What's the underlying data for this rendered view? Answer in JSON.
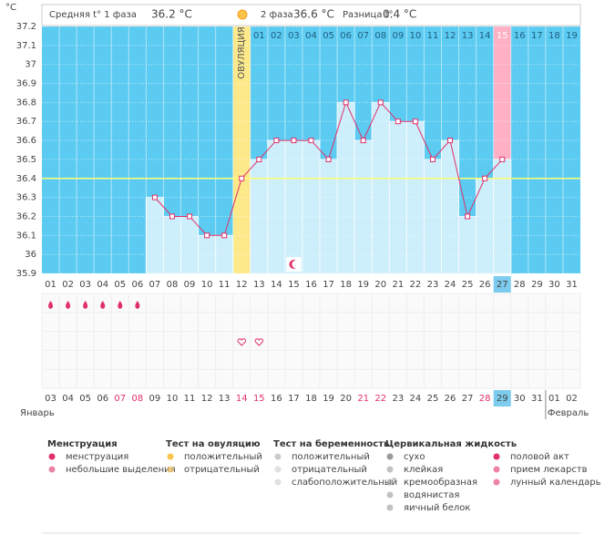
{
  "chart_data": {
    "type": "line",
    "unit": "°C",
    "header": {
      "phase1_label": "Средняя t° 1 фаза",
      "phase1_value": "36.2 °C",
      "phase2_label": "2 фаза",
      "phase2_value": "36.6 °C",
      "diff_label": "Разница t°",
      "diff_value": "0.4 °C"
    },
    "ovulation_label": "ОВУЛЯЦИЯ",
    "ovulation_index": 11,
    "highlight_index": 26,
    "categories": [
      "01",
      "02",
      "03",
      "04",
      "05",
      "06",
      "07",
      "08",
      "09",
      "10",
      "11",
      "12",
      "13",
      "14",
      "15",
      "16",
      "17",
      "18",
      "19",
      "20",
      "21",
      "22",
      "23",
      "24",
      "25",
      "26",
      "27",
      "28",
      "29",
      "30",
      "31"
    ],
    "phase2_days": [
      null,
      null,
      null,
      null,
      null,
      null,
      null,
      null,
      null,
      null,
      null,
      null,
      "01",
      "02",
      "03",
      "04",
      "05",
      "06",
      "07",
      "08",
      "09",
      "10",
      "11",
      "12",
      "13",
      "14",
      "15",
      "16",
      "17",
      "18",
      "19"
    ],
    "dates": [
      "03",
      "04",
      "05",
      "06",
      "07",
      "08",
      "09",
      "10",
      "11",
      "12",
      "13",
      "14",
      "15",
      "16",
      "17",
      "18",
      "19",
      "20",
      "21",
      "22",
      "23",
      "24",
      "25",
      "26",
      "27",
      "28",
      "29",
      "30",
      "31",
      "01",
      "02"
    ],
    "weekend_indices": [
      4,
      5,
      11,
      12,
      18,
      19,
      25
    ],
    "weekend_color": "#e0306a",
    "month_start": "Январь",
    "month_end": "Февраль",
    "series": [
      {
        "name": "t°",
        "color": "#e0306a",
        "values": [
          null,
          null,
          null,
          null,
          null,
          null,
          36.3,
          36.2,
          36.2,
          36.1,
          36.1,
          36.4,
          36.5,
          36.6,
          36.6,
          36.6,
          36.5,
          36.8,
          36.6,
          36.8,
          36.7,
          36.7,
          36.5,
          36.6,
          36.2,
          36.4,
          36.5,
          null,
          null,
          null,
          null
        ]
      }
    ],
    "baseline": 36.4,
    "ylim": [
      35.9,
      37.2
    ],
    "yticks": [
      35.9,
      36,
      36.1,
      36.2,
      36.3,
      36.4,
      36.5,
      36.6,
      36.7,
      36.8,
      36.9,
      37,
      37.1,
      37.2
    ],
    "grid": true,
    "symbols": {
      "menstruation": [
        0,
        1,
        2,
        3,
        4,
        5
      ],
      "intercourse": [
        11,
        12
      ],
      "moon": [
        14
      ]
    },
    "legend": [
      {
        "title": "Менструация",
        "items": [
          "менструация",
          "небольшие выделения"
        ]
      },
      {
        "title": "Тест на овуляцию",
        "items": [
          "положительный",
          "отрицательный"
        ]
      },
      {
        "title": "Тест на беременность",
        "items": [
          "положительный",
          "отрицательный",
          "слабоположительный"
        ]
      },
      {
        "title": "Цервикальная жидкость",
        "items": [
          "сухо",
          "клейкая",
          "кремообразная",
          "водянистая",
          "яичный белок"
        ]
      },
      {
        "items": [
          "половой акт",
          "прием лекарств",
          "лунный календарь"
        ]
      }
    ]
  }
}
